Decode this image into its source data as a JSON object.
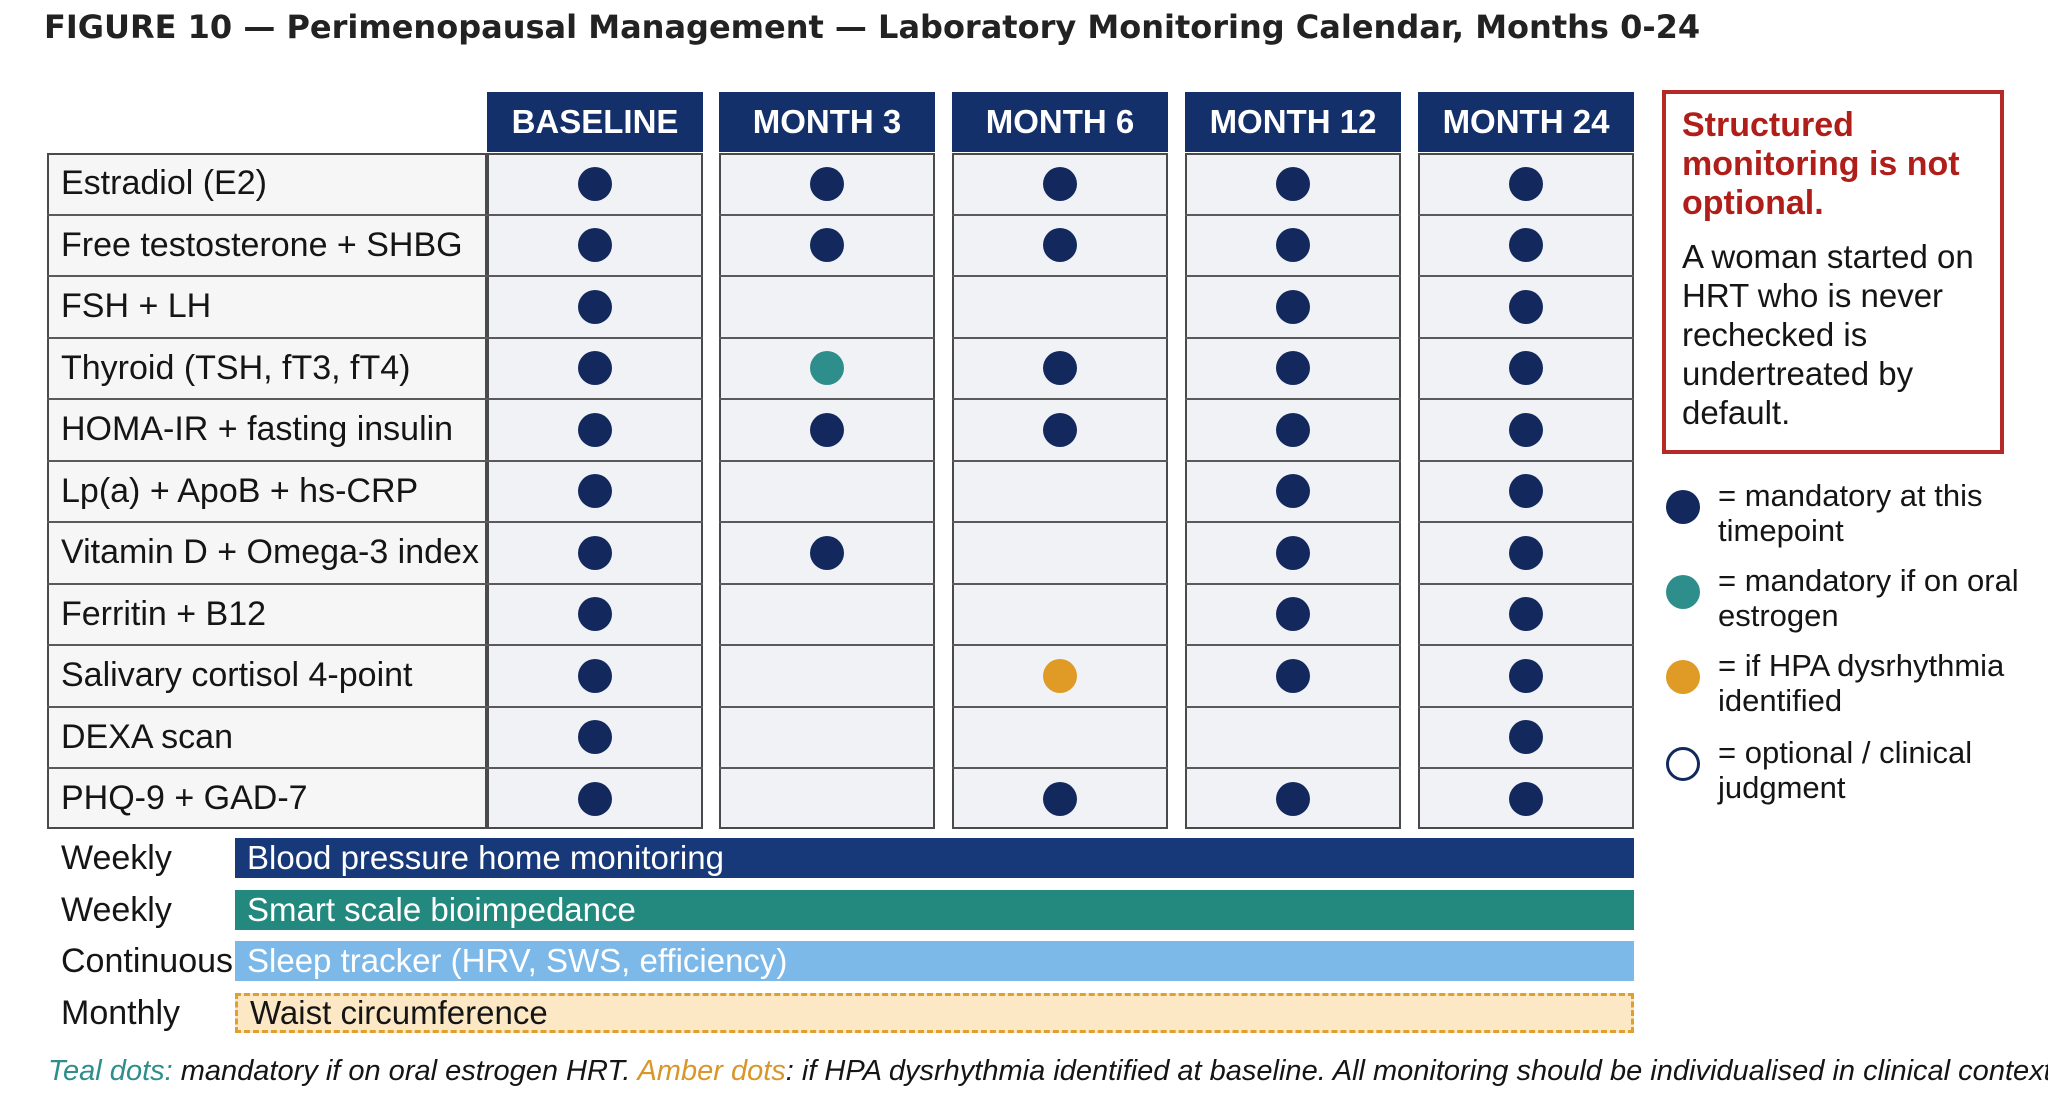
{
  "title": "FIGURE 10 — Perimenopausal Management — Laboratory Monitoring Calendar, Months 0-24",
  "columns": [
    "BASELINE",
    "MONTH 3",
    "MONTH 6",
    "MONTH 12",
    "MONTH 24"
  ],
  "rows": [
    {
      "label": "Estradiol (E2)",
      "marks": [
        "mandatory",
        "mandatory",
        "mandatory",
        "mandatory",
        "mandatory"
      ]
    },
    {
      "label": "Free testosterone + SHBG",
      "marks": [
        "mandatory",
        "mandatory",
        "mandatory",
        "mandatory",
        "mandatory"
      ]
    },
    {
      "label": "FSH + LH",
      "marks": [
        "mandatory",
        "",
        "",
        "mandatory",
        "mandatory"
      ]
    },
    {
      "label": "Thyroid (TSH, fT3, fT4)",
      "marks": [
        "mandatory",
        "oral",
        "mandatory",
        "mandatory",
        "mandatory"
      ]
    },
    {
      "label": "HOMA-IR + fasting insulin",
      "marks": [
        "mandatory",
        "mandatory",
        "mandatory",
        "mandatory",
        "mandatory"
      ]
    },
    {
      "label": "Lp(a) + ApoB + hs-CRP",
      "marks": [
        "mandatory",
        "",
        "",
        "mandatory",
        "mandatory"
      ]
    },
    {
      "label": "Vitamin D + Omega-3 index",
      "marks": [
        "mandatory",
        "mandatory",
        "",
        "mandatory",
        "mandatory"
      ]
    },
    {
      "label": "Ferritin + B12",
      "marks": [
        "mandatory",
        "",
        "",
        "mandatory",
        "mandatory"
      ]
    },
    {
      "label": "Salivary cortisol 4-point",
      "marks": [
        "mandatory",
        "",
        "hpa",
        "mandatory",
        "mandatory"
      ]
    },
    {
      "label": "DEXA scan",
      "marks": [
        "mandatory",
        "",
        "",
        "",
        "mandatory"
      ]
    },
    {
      "label": "PHQ-9 + GAD-7",
      "marks": [
        "mandatory",
        "",
        "mandatory",
        "mandatory",
        "mandatory"
      ]
    }
  ],
  "continuous_monitoring": [
    {
      "frequency": "Weekly",
      "item": "Blood pressure home monitoring",
      "color": "#17397a"
    },
    {
      "frequency": "Weekly",
      "item": "Smart scale bioimpedance",
      "color": "#23897f"
    },
    {
      "frequency": "Continuous",
      "item": "Sleep tracker (HRV, SWS, efficiency)",
      "color": "#7cb8e8"
    },
    {
      "frequency": "Monthly",
      "item": "Waist circumference",
      "color": "#fde8c6"
    }
  ],
  "callout": {
    "title": "Structured monitoring is not optional.",
    "body": "A woman started on HRT who is never rechecked is undertreated by default."
  },
  "legend": [
    {
      "mark": "mandatory",
      "text": "= mandatory at this timepoint",
      "color": "#13295e"
    },
    {
      "mark": "oral",
      "text": "= mandatory if on oral estrogen",
      "color": "#2e8e8b"
    },
    {
      "mark": "hpa",
      "text": "= if HPA dysrhythmia identified",
      "color": "#e09a26"
    },
    {
      "mark": "optional",
      "text": "= optional / clinical judgment",
      "color": "#ffffff"
    }
  ],
  "footnote": {
    "teal_lead": "Teal dots:",
    "teal_text": " mandatory if on oral estrogen HRT. ",
    "amber_lead": "Amber dots",
    "amber_text": ": if HPA dysrhythmia identified at baseline. All monitoring should be individualised in clinical context."
  }
}
